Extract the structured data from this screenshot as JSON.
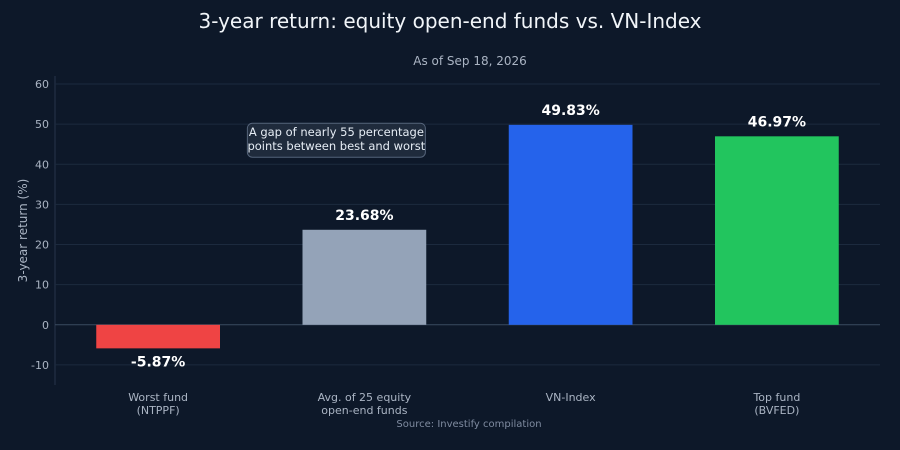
{
  "chart_data": {
    "type": "bar",
    "title": "3-year return: equity open-end funds vs. VN-Index",
    "subtitle": "As of Sep 18, 2026",
    "ylabel": "3-year return (%)",
    "xlabel": "",
    "ylim": [
      -15,
      62
    ],
    "yticks": [
      -10,
      0,
      10,
      20,
      30,
      40,
      50,
      60
    ],
    "grid": true,
    "categories": [
      [
        "Worst fund",
        "(NTPPF)"
      ],
      [
        "Avg. of 25 equity",
        "open-end funds"
      ],
      [
        "VN-Index"
      ],
      [
        "Top fund",
        "(BVFED)"
      ]
    ],
    "values": [
      -5.87,
      23.68,
      49.83,
      46.97
    ],
    "data_labels": [
      "-5.87%",
      "23.68%",
      "49.83%",
      "46.97%"
    ],
    "colors": [
      "#ef4444",
      "#94a3b8",
      "#2563eb",
      "#22c55e"
    ],
    "annotation": {
      "lines": [
        "A gap of nearly 55 percentage",
        "points between best and worst"
      ],
      "near_category": 1,
      "near_value": 46
    },
    "source": "Source: Investify compilation"
  }
}
